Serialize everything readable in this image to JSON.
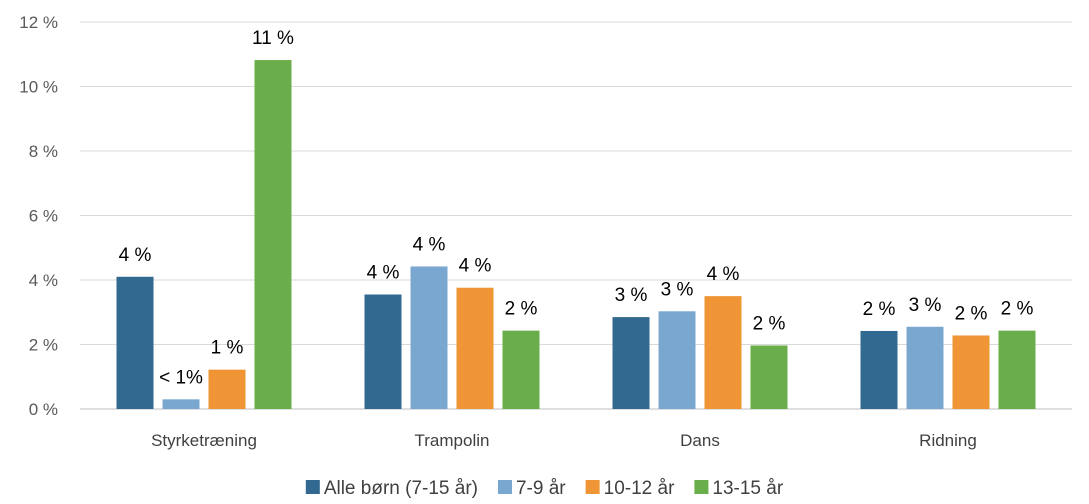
{
  "chart_data": {
    "type": "bar",
    "categories": [
      "Styrketræning",
      "Trampolin",
      "Dans",
      "Ridning"
    ],
    "series": [
      {
        "name": "Alle børn (7-15 år)",
        "color": "#326991",
        "values": [
          4.1,
          3.55,
          2.85,
          2.42
        ],
        "labels": [
          "4 %",
          "4 %",
          "3 %",
          "2 %"
        ]
      },
      {
        "name": "7-9 år",
        "color": "#7AA7D0",
        "values": [
          0.3,
          4.42,
          3.03,
          2.55
        ],
        "labels": [
          "< 1%",
          "4 %",
          "3 %",
          "3 %"
        ]
      },
      {
        "name": "10-12 år",
        "color": "#EF9536",
        "values": [
          1.22,
          3.76,
          3.5,
          2.28
        ],
        "labels": [
          "1 %",
          "4 %",
          "4 %",
          "2 %"
        ]
      },
      {
        "name": "13-15 år",
        "color": "#6AAE4B",
        "values": [
          10.82,
          2.43,
          1.97,
          2.43
        ],
        "labels": [
          "11 %",
          "2 %",
          "2 %",
          "2 %"
        ]
      }
    ],
    "yticks": [
      "0 %",
      "2 %",
      "4 %",
      "6 %",
      "8 %",
      "10 %",
      "12 %"
    ],
    "ylim": [
      0,
      12
    ],
    "grid": true,
    "legend": "bottom"
  }
}
